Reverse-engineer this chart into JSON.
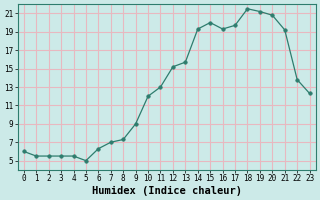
{
  "x": [
    0,
    1,
    2,
    3,
    4,
    5,
    6,
    7,
    8,
    9,
    10,
    11,
    12,
    13,
    14,
    15,
    16,
    17,
    18,
    19,
    20,
    21,
    22,
    23
  ],
  "y": [
    6.0,
    5.5,
    5.5,
    5.5,
    5.5,
    5.0,
    6.3,
    7.0,
    7.3,
    9.0,
    12.0,
    13.0,
    15.2,
    15.7,
    19.3,
    20.0,
    19.3,
    19.7,
    21.5,
    21.2,
    20.8,
    19.2,
    13.8,
    12.3
  ],
  "line_color": "#2e7d6e",
  "marker": "o",
  "marker_size": 2.5,
  "bg_color": "#cceae8",
  "grid_color": "#e8b8c0",
  "xlabel": "Humidex (Indice chaleur)",
  "xlim": [
    -0.5,
    23.5
  ],
  "ylim": [
    4,
    22
  ],
  "xticks": [
    0,
    1,
    2,
    3,
    4,
    5,
    6,
    7,
    8,
    9,
    10,
    11,
    12,
    13,
    14,
    15,
    16,
    17,
    18,
    19,
    20,
    21,
    22,
    23
  ],
  "yticks": [
    5,
    7,
    9,
    11,
    13,
    15,
    17,
    19,
    21
  ],
  "tick_fontsize": 5.5,
  "xlabel_fontsize": 7.5
}
